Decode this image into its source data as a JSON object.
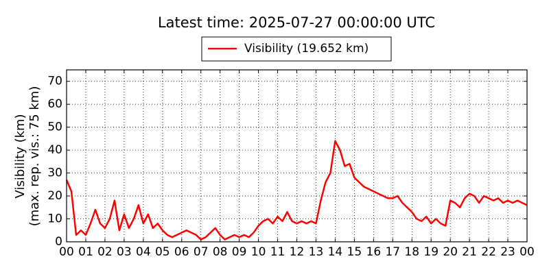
{
  "chart_data": {
    "type": "line",
    "title": "Latest time: 2025-07-27 00:00:00 UTC",
    "ylabel": [
      "Visibility (km)",
      "(max. rep. vis.: 75 km)"
    ],
    "legend": "upper center",
    "grid": true,
    "xlim": [
      0,
      24
    ],
    "ylim": [
      0,
      75
    ],
    "yticks": [
      0,
      10,
      20,
      30,
      40,
      50,
      60,
      70
    ],
    "xticks": [
      {
        "value": 0,
        "label": "00"
      },
      {
        "value": 1,
        "label": "01"
      },
      {
        "value": 2,
        "label": "02"
      },
      {
        "value": 3,
        "label": "03"
      },
      {
        "value": 4,
        "label": "04"
      },
      {
        "value": 5,
        "label": "05"
      },
      {
        "value": 6,
        "label": "06"
      },
      {
        "value": 7,
        "label": "07"
      },
      {
        "value": 8,
        "label": "08"
      },
      {
        "value": 9,
        "label": "09"
      },
      {
        "value": 10,
        "label": "10"
      },
      {
        "value": 11,
        "label": "11"
      },
      {
        "value": 12,
        "label": "12"
      },
      {
        "value": 13,
        "label": "13"
      },
      {
        "value": 14,
        "label": "14"
      },
      {
        "value": 15,
        "label": "15"
      },
      {
        "value": 16,
        "label": "16"
      },
      {
        "value": 17,
        "label": "17"
      },
      {
        "value": 18,
        "label": "18"
      },
      {
        "value": 19,
        "label": "19"
      },
      {
        "value": 20,
        "label": "20"
      },
      {
        "value": 21,
        "label": "21"
      },
      {
        "value": 22,
        "label": "22"
      },
      {
        "value": 23,
        "label": "23"
      },
      {
        "value": 24,
        "label": "00"
      }
    ],
    "x": [
      0,
      0.25,
      0.5,
      0.75,
      1,
      1.25,
      1.5,
      1.75,
      2,
      2.25,
      2.5,
      2.75,
      3,
      3.25,
      3.5,
      3.75,
      4,
      4.25,
      4.5,
      4.75,
      5,
      5.25,
      5.5,
      5.75,
      6,
      6.25,
      6.5,
      6.75,
      7,
      7.25,
      7.5,
      7.75,
      8,
      8.25,
      8.5,
      8.75,
      9,
      9.25,
      9.5,
      9.75,
      10,
      10.25,
      10.5,
      10.75,
      11,
      11.25,
      11.5,
      11.75,
      12,
      12.25,
      12.5,
      12.75,
      13,
      13.25,
      13.5,
      13.75,
      14,
      14.25,
      14.5,
      14.75,
      15,
      15.25,
      15.5,
      15.75,
      16,
      16.25,
      16.5,
      16.75,
      17,
      17.25,
      17.5,
      17.75,
      18,
      18.25,
      18.5,
      18.75,
      19,
      19.25,
      19.5,
      19.75,
      20,
      20.25,
      20.5,
      20.75,
      21,
      21.25,
      21.5,
      21.75,
      22,
      22.25,
      22.5,
      22.75,
      23,
      23.25,
      23.5,
      23.75,
      24
    ],
    "series": [
      {
        "name": "Visibility (19.652 km)",
        "color": "#ff0000",
        "values": [
          27,
          22,
          3,
          5,
          3,
          8,
          14,
          8,
          6,
          10,
          18,
          5,
          12,
          6,
          10,
          16,
          8,
          12,
          6,
          8,
          5,
          3,
          2,
          3,
          4,
          5,
          4,
          3,
          1,
          2,
          4,
          6,
          3,
          1,
          2,
          3,
          2,
          3,
          2,
          4,
          7,
          9,
          10,
          8,
          11,
          9,
          13,
          9,
          8,
          9,
          8,
          9,
          8,
          18,
          26,
          30,
          44,
          40,
          33,
          34,
          28,
          26,
          24,
          23,
          22,
          21,
          20,
          19,
          19,
          20,
          17,
          15,
          13,
          10,
          9,
          11,
          8,
          10,
          8,
          7,
          18,
          17,
          15,
          19,
          21,
          20,
          17,
          20,
          19,
          18,
          19,
          17,
          18,
          17,
          18,
          17,
          16
        ]
      }
    ]
  }
}
